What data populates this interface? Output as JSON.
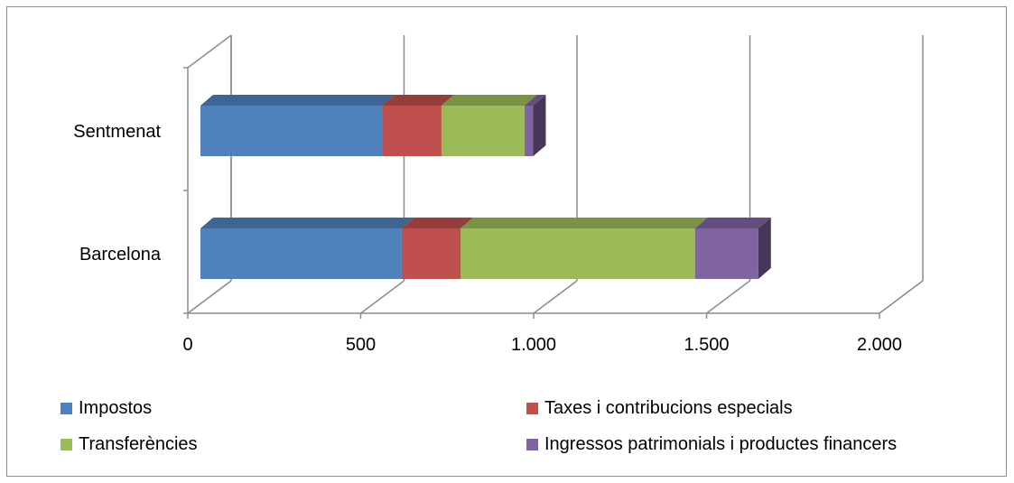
{
  "chart_data": {
    "type": "bar",
    "orientation": "horizontal",
    "stacked": true,
    "style": "3d",
    "categories": [
      "Sentmenat",
      "Barcelona"
    ],
    "series": [
      {
        "name": "Impostos",
        "color": "#4F81BD",
        "values": [
          525,
          582
        ]
      },
      {
        "name": "Taxes i contribucions especials",
        "color": "#C0504D",
        "values": [
          172,
          170
        ]
      },
      {
        "name": "Transferències",
        "color": "#9BBB59",
        "values": [
          240,
          678
        ]
      },
      {
        "name": "Ingressos patrimonials i productes financers",
        "color": "#8064A2",
        "values": [
          25,
          183
        ]
      }
    ],
    "xlim": [
      0,
      2000
    ],
    "xticks": [
      0,
      500,
      1000,
      1500,
      2000
    ],
    "xtick_labels": [
      "0",
      "500",
      "1.000",
      "1.500",
      "2.000"
    ],
    "grid": true,
    "legend_position": "bottom",
    "title": "",
    "xlabel": "",
    "ylabel": ""
  }
}
